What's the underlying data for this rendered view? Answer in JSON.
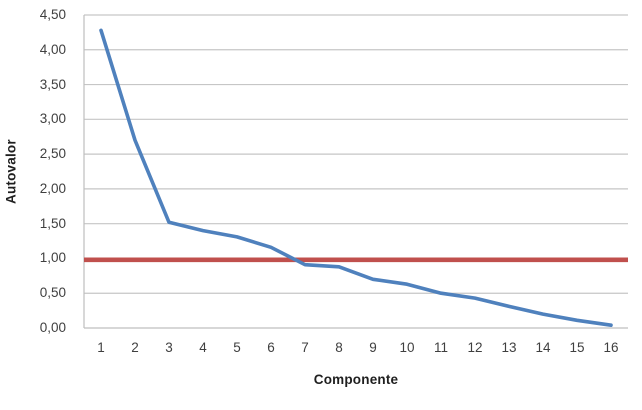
{
  "chart_data": {
    "type": "line",
    "title": "",
    "xlabel": "Componente",
    "ylabel": "Autovalor",
    "categories": [
      "1",
      "2",
      "3",
      "4",
      "5",
      "6",
      "7",
      "8",
      "9",
      "10",
      "11",
      "12",
      "13",
      "14",
      "15",
      "16"
    ],
    "series": [
      {
        "name": "Autovalor",
        "color": "#4F81BD",
        "stroke_width": 3.6,
        "values": [
          4.28,
          2.7,
          1.52,
          1.4,
          1.31,
          1.16,
          0.91,
          0.88,
          0.7,
          0.63,
          0.5,
          0.43,
          0.31,
          0.2,
          0.11,
          0.04
        ]
      }
    ],
    "reference_line": {
      "value": 0.98,
      "color": "#C0504D",
      "stroke_width": 4.6
    },
    "ylim": [
      0,
      4.5
    ],
    "ytick_step": 0.5,
    "ytick_labels": [
      "0,00",
      "0,50",
      "1,00",
      "1,50",
      "2,00",
      "2,50",
      "3,00",
      "3,50",
      "4,00",
      "4,50"
    ],
    "grid": true,
    "grid_color": "#c6c6c6",
    "axis_color": "#bfbfbf",
    "tick_text_color": "#3f3f3f",
    "legend": "none",
    "background": "#ffffff"
  }
}
